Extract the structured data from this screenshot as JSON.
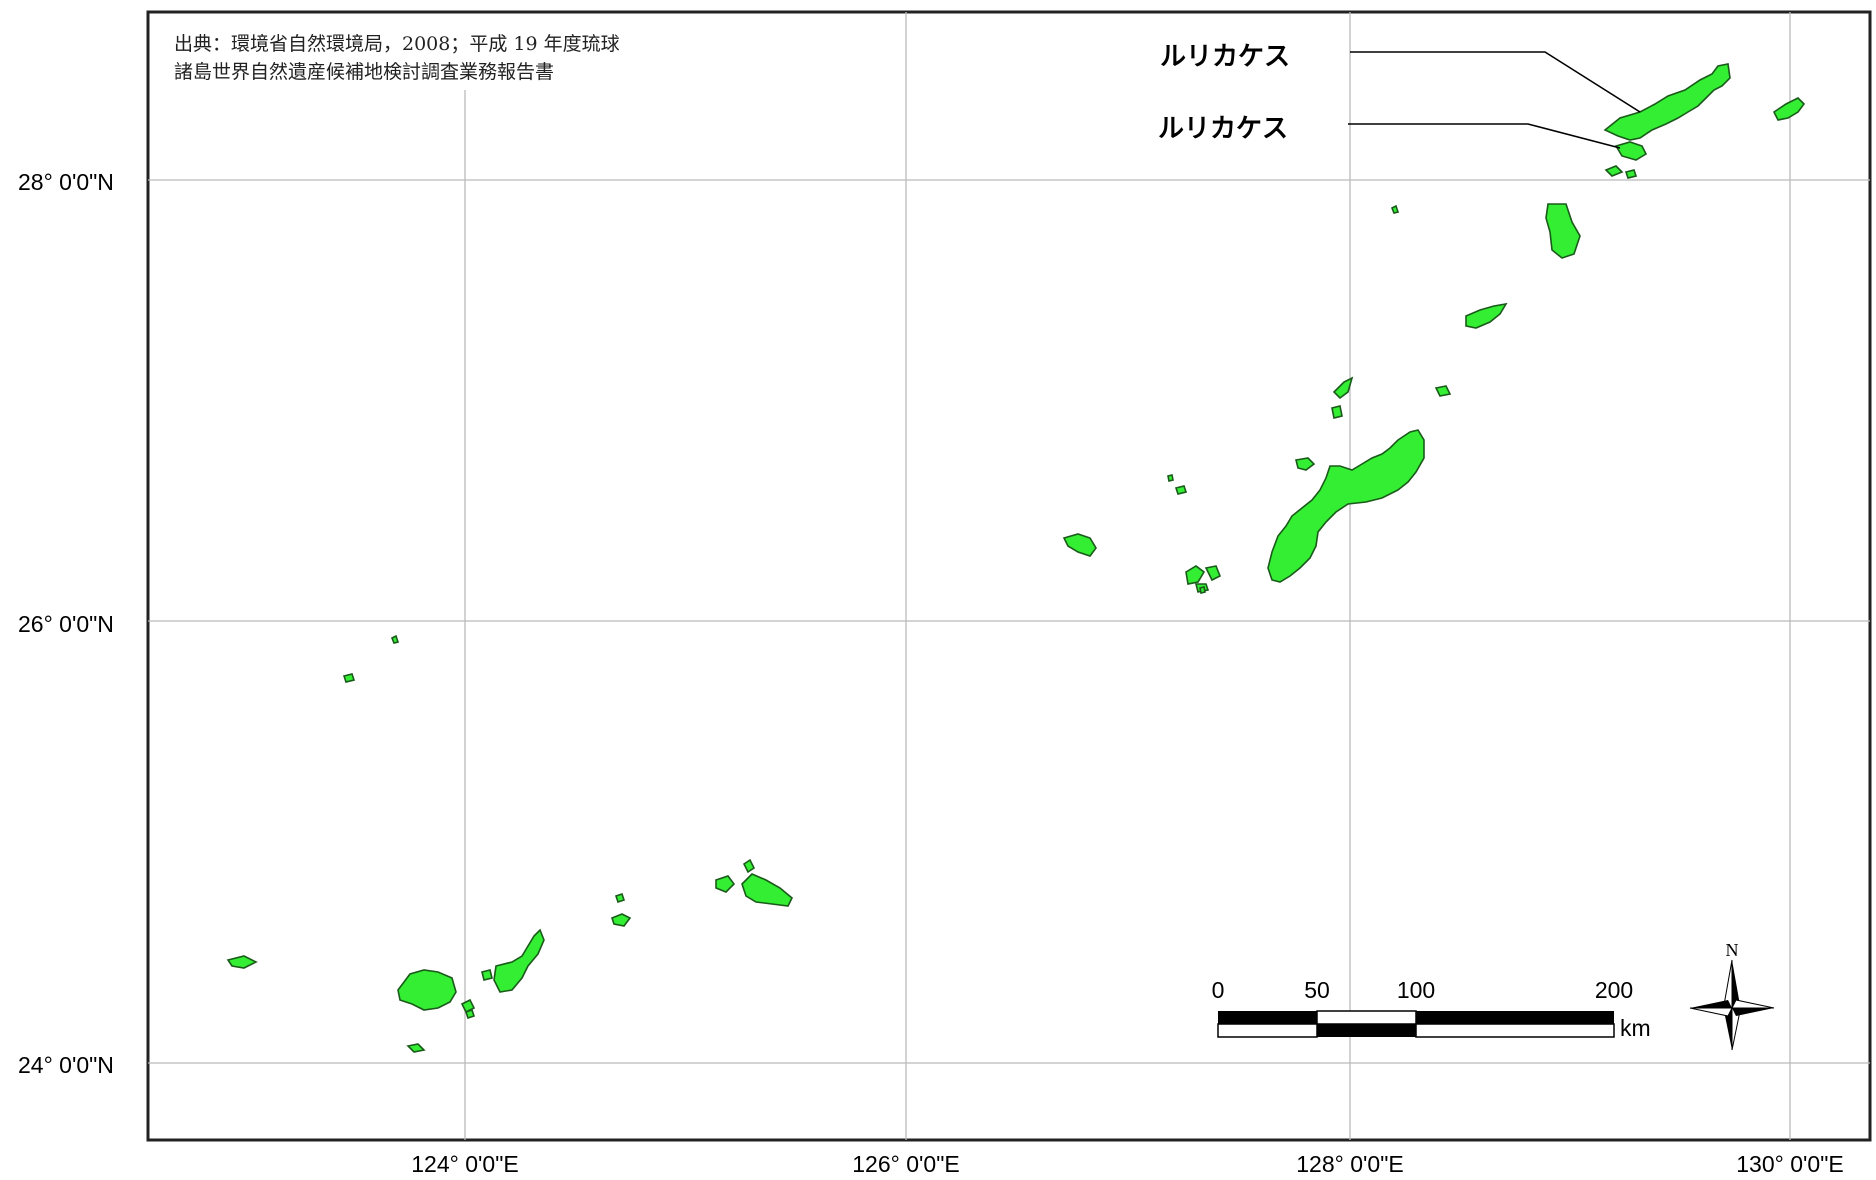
{
  "map": {
    "source_note": {
      "line1": "出典：環境省自然環境局，2008；平成 19 年度琉球",
      "line2": "諸島世界自然遺産候補地検討調査業務報告書"
    },
    "latitude_labels": [
      "28°  0'0\"N",
      "26°  0'0\"N",
      "24°  0'0\"N"
    ],
    "longitude_labels": [
      "124°  0'0\"E",
      "126°  0'0\"E",
      "128°  0'0\"E",
      "130°  0'0\"E"
    ],
    "callouts": [
      "ルリカケス",
      "ルリカケス"
    ],
    "scale_bar": {
      "ticks": [
        "0",
        "50",
        "100",
        "200"
      ],
      "unit": "km"
    },
    "north_arrow": {
      "label": "N"
    },
    "colors": {
      "land": "#33ee33",
      "coast": "#1a5a1a",
      "grid": "#bbbbbb",
      "frame": "#222222"
    }
  }
}
